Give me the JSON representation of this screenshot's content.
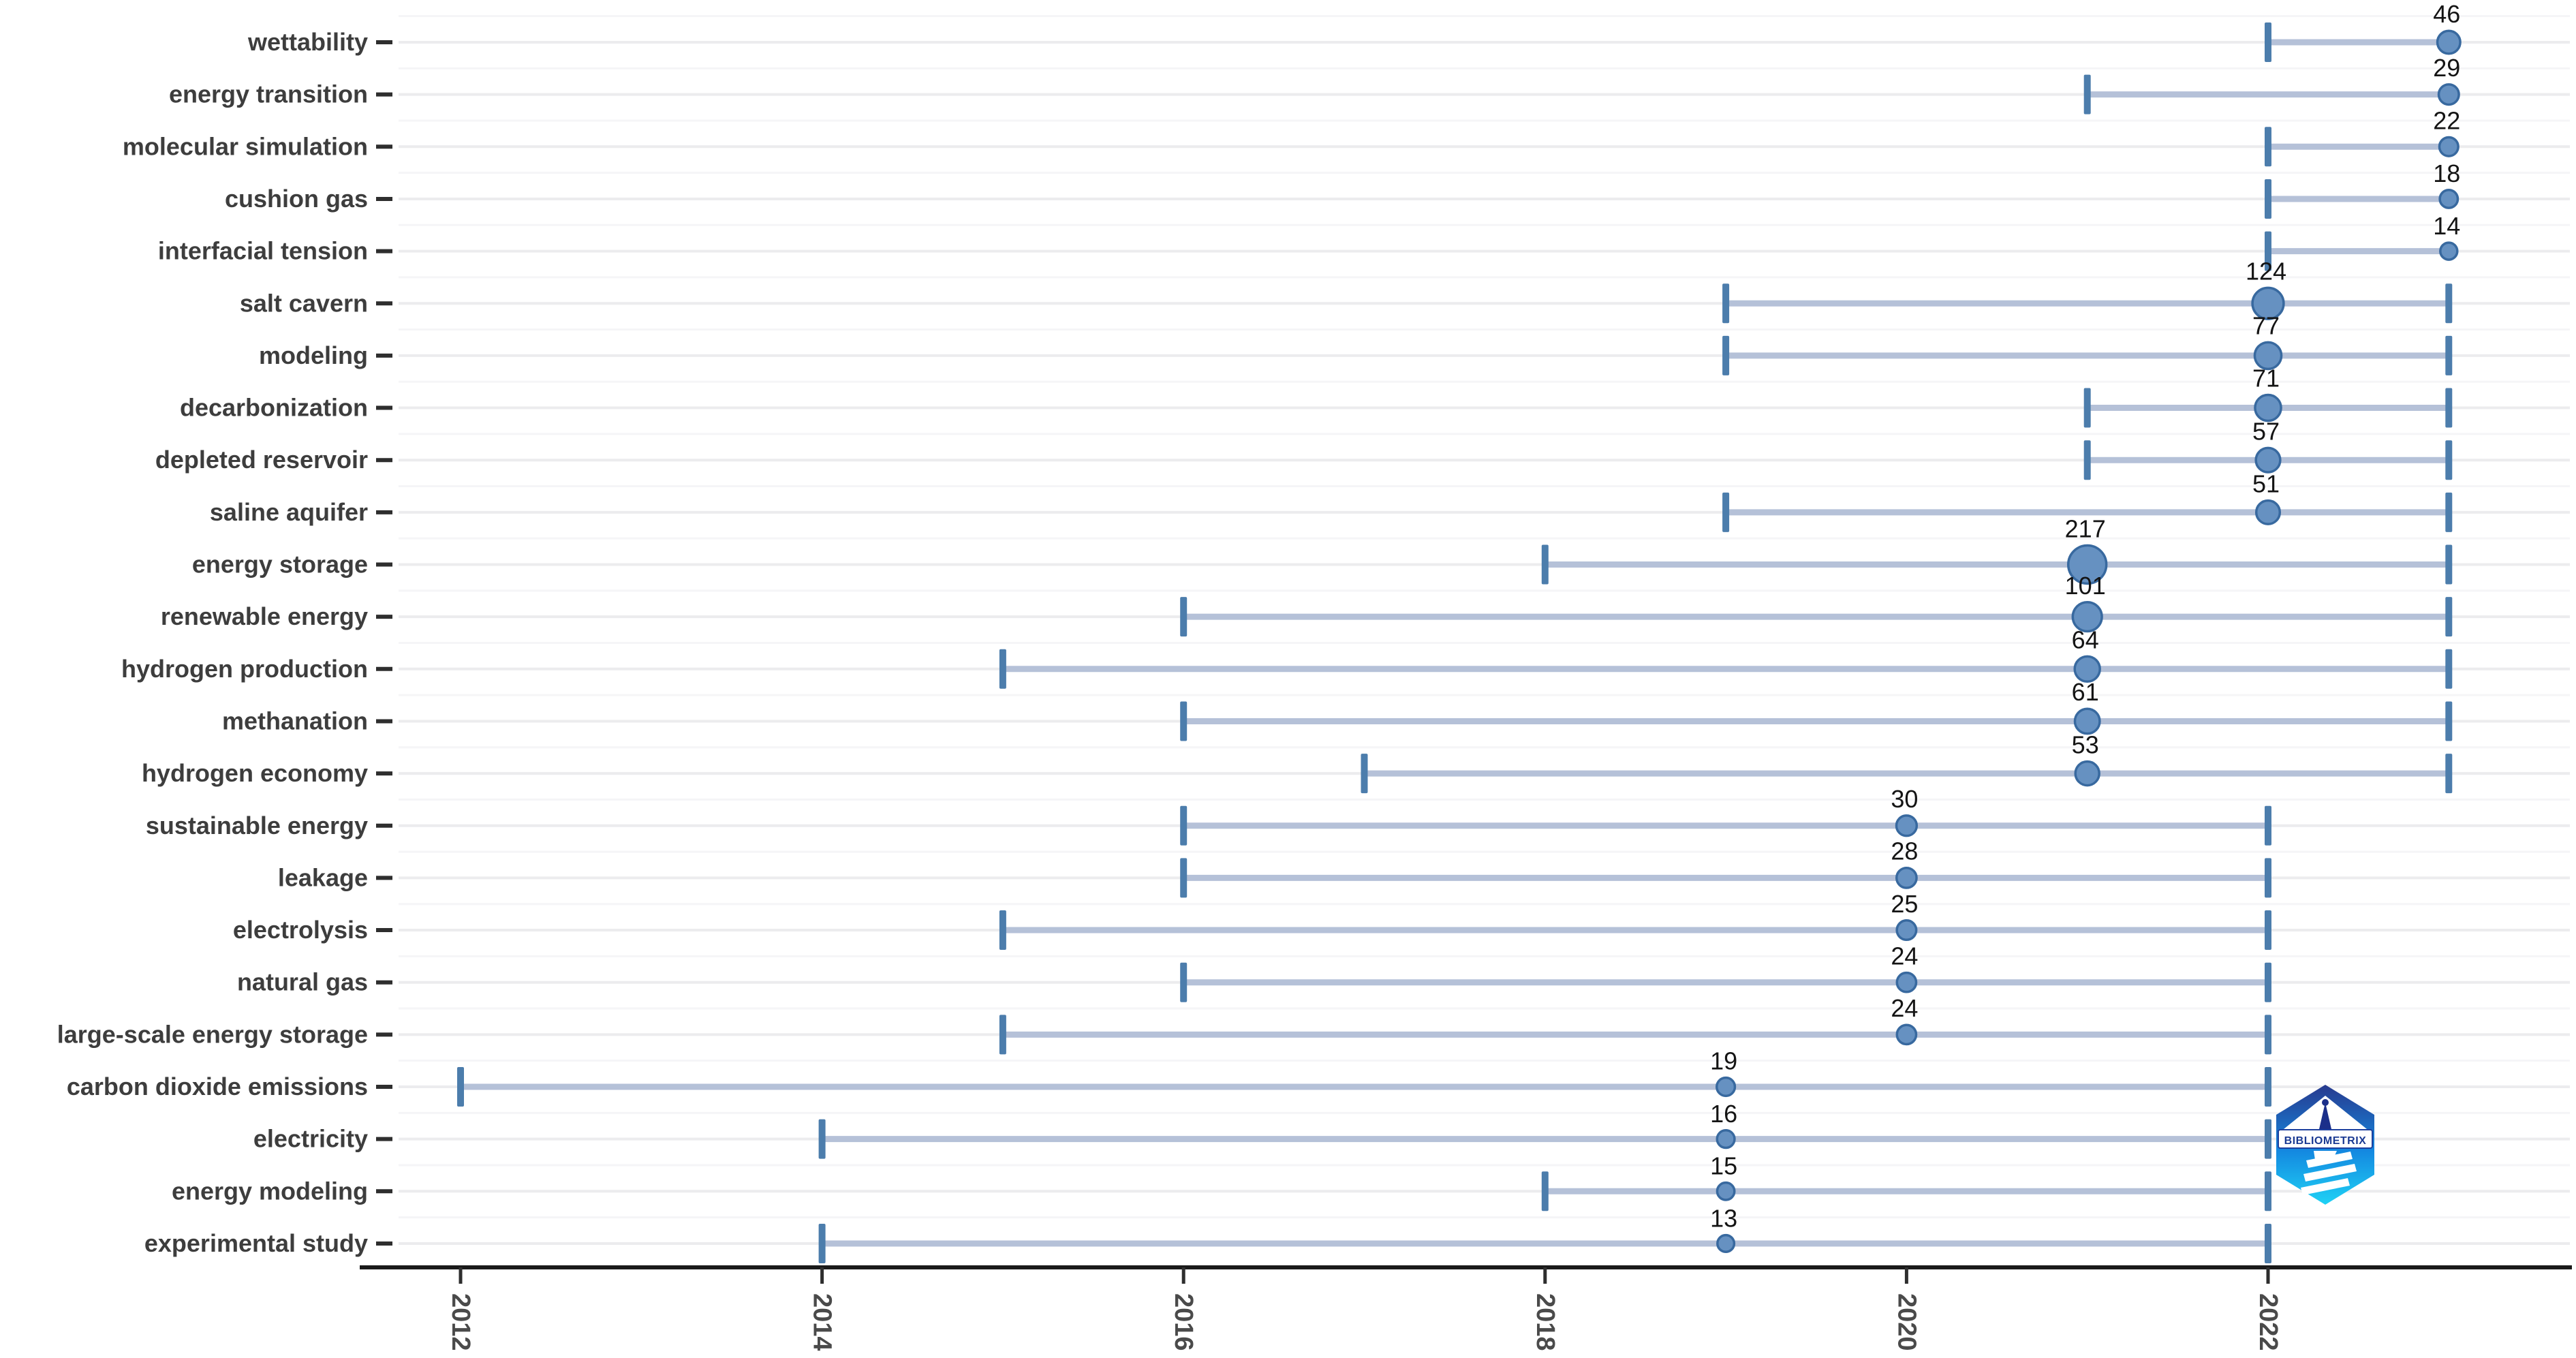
{
  "logo": {
    "text": "BIBLIOMETRIX"
  },
  "chart_data": {
    "type": "scatter",
    "subtype": "trend-topics-term-timeline",
    "title": "",
    "xlabel": "",
    "ylabel": "",
    "legend": "none",
    "grid": "horizontal-light",
    "bubble_size_encodes": "term frequency",
    "x_ticks": [
      2012,
      2014,
      2016,
      2018,
      2020,
      2022
    ],
    "x_range": [
      2011.4,
      2023.7
    ],
    "colors": {
      "dot_fill": "#6691c1",
      "dot_stroke": "#38699f",
      "range_line": "#b5c1d8",
      "whisker_cap": "#4c7dac",
      "grid_major": "#ececee",
      "grid_minor": "#f5f5f7",
      "axis": "#1a1a1a",
      "tick": "#2e2e2e",
      "y_label": "#3d3d3d",
      "x_label": "#4a4a4a",
      "value_label": "#141414",
      "logo_top": "#283a8e",
      "logo_mid": "#1488e0",
      "logo_bottom": "#1fd2f5",
      "logo_text": "#1a3a92"
    },
    "items": [
      {
        "term": "wettability",
        "freq": 46,
        "year_q1": 2022,
        "year_median": 2023,
        "year_q3": 2023
      },
      {
        "term": "energy transition",
        "freq": 29,
        "year_q1": 2021,
        "year_median": 2023,
        "year_q3": 2023
      },
      {
        "term": "molecular simulation",
        "freq": 22,
        "year_q1": 2022,
        "year_median": 2023,
        "year_q3": 2023
      },
      {
        "term": "cushion gas",
        "freq": 18,
        "year_q1": 2022,
        "year_median": 2023,
        "year_q3": 2023
      },
      {
        "term": "interfacial tension",
        "freq": 14,
        "year_q1": 2022,
        "year_median": 2023,
        "year_q3": 2023
      },
      {
        "term": "salt cavern",
        "freq": 124,
        "year_q1": 2019,
        "year_median": 2022,
        "year_q3": 2023
      },
      {
        "term": "modeling",
        "freq": 77,
        "year_q1": 2019,
        "year_median": 2022,
        "year_q3": 2023
      },
      {
        "term": "decarbonization",
        "freq": 71,
        "year_q1": 2021,
        "year_median": 2022,
        "year_q3": 2023
      },
      {
        "term": "depleted reservoir",
        "freq": 57,
        "year_q1": 2021,
        "year_median": 2022,
        "year_q3": 2023
      },
      {
        "term": "saline aquifer",
        "freq": 51,
        "year_q1": 2019,
        "year_median": 2022,
        "year_q3": 2023
      },
      {
        "term": "energy storage",
        "freq": 217,
        "year_q1": 2018,
        "year_median": 2021,
        "year_q3": 2023
      },
      {
        "term": "renewable energy",
        "freq": 101,
        "year_q1": 2016,
        "year_median": 2021,
        "year_q3": 2023
      },
      {
        "term": "hydrogen production",
        "freq": 64,
        "year_q1": 2015,
        "year_median": 2021,
        "year_q3": 2023
      },
      {
        "term": "methanation",
        "freq": 61,
        "year_q1": 2016,
        "year_median": 2021,
        "year_q3": 2023
      },
      {
        "term": "hydrogen economy",
        "freq": 53,
        "year_q1": 2017,
        "year_median": 2021,
        "year_q3": 2023
      },
      {
        "term": "sustainable energy",
        "freq": 30,
        "year_q1": 2016,
        "year_median": 2020,
        "year_q3": 2022
      },
      {
        "term": "leakage",
        "freq": 28,
        "year_q1": 2016,
        "year_median": 2020,
        "year_q3": 2022
      },
      {
        "term": "electrolysis",
        "freq": 25,
        "year_q1": 2015,
        "year_median": 2020,
        "year_q3": 2022
      },
      {
        "term": "natural gas",
        "freq": 24,
        "year_q1": 2016,
        "year_median": 2020,
        "year_q3": 2022
      },
      {
        "term": "large-scale energy storage",
        "freq": 24,
        "year_q1": 2015,
        "year_median": 2020,
        "year_q3": 2022
      },
      {
        "term": "carbon dioxide emissions",
        "freq": 19,
        "year_q1": 2012,
        "year_median": 2019,
        "year_q3": 2022
      },
      {
        "term": "electricity",
        "freq": 16,
        "year_q1": 2014,
        "year_median": 2019,
        "year_q3": 2022
      },
      {
        "term": "energy modeling",
        "freq": 15,
        "year_q1": 2018,
        "year_median": 2019,
        "year_q3": 2022
      },
      {
        "term": "experimental study",
        "freq": 13,
        "year_q1": 2014,
        "year_median": 2019,
        "year_q3": 2022
      }
    ]
  }
}
